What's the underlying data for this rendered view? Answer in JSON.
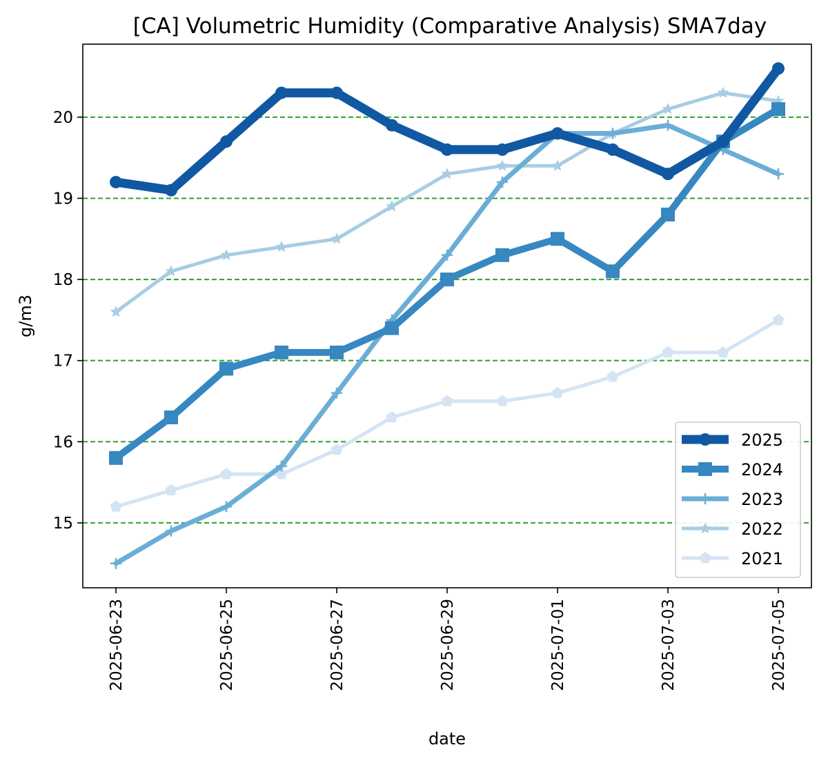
{
  "chart_data": {
    "type": "line",
    "title": "[CA] Volumetric Humidity (Comparative Analysis) SMA7day",
    "xlabel": "date",
    "ylabel": "g/m3",
    "x": [
      "2025-06-23",
      "2025-06-24",
      "2025-06-25",
      "2025-06-26",
      "2025-06-27",
      "2025-06-28",
      "2025-06-29",
      "2025-06-30",
      "2025-07-01",
      "2025-07-02",
      "2025-07-03",
      "2025-07-04",
      "2025-07-05"
    ],
    "xticks": [
      "2025-06-23",
      "2025-06-25",
      "2025-06-27",
      "2025-06-29",
      "2025-07-01",
      "2025-07-03",
      "2025-07-05"
    ],
    "yticks": [
      15,
      16,
      17,
      18,
      19,
      20
    ],
    "ylim": [
      14.2,
      20.9
    ],
    "grid": "horizontal dashed",
    "grid_color": "#2ca02c",
    "legend_position": "lower right",
    "series": [
      {
        "name": "2025",
        "color": "#1158a3",
        "marker": "circle",
        "values": [
          19.2,
          19.1,
          19.7,
          20.3,
          20.3,
          19.9,
          19.6,
          19.6,
          19.8,
          19.6,
          19.3,
          19.7,
          20.6
        ]
      },
      {
        "name": "2024",
        "color": "#3787c0",
        "marker": "square",
        "values": [
          15.8,
          16.3,
          16.9,
          17.1,
          17.1,
          17.4,
          18.0,
          18.3,
          18.5,
          18.1,
          18.8,
          19.7,
          20.1
        ]
      },
      {
        "name": "2023",
        "color": "#6aaed6",
        "marker": "plus",
        "values": [
          14.5,
          14.9,
          15.2,
          15.7,
          16.6,
          17.5,
          18.3,
          19.2,
          19.8,
          19.8,
          19.9,
          19.6,
          19.3
        ]
      },
      {
        "name": "2022",
        "color": "#a7cde3",
        "marker": "star",
        "values": [
          17.6,
          18.1,
          18.3,
          18.4,
          18.5,
          18.9,
          19.3,
          19.4,
          19.4,
          19.8,
          20.1,
          20.3,
          20.2
        ]
      },
      {
        "name": "2021",
        "color": "#d4e4f4",
        "marker": "pentagon",
        "values": [
          15.2,
          15.4,
          15.6,
          15.6,
          15.9,
          16.3,
          16.5,
          16.5,
          16.6,
          16.8,
          17.1,
          17.1,
          17.5
        ]
      }
    ]
  }
}
